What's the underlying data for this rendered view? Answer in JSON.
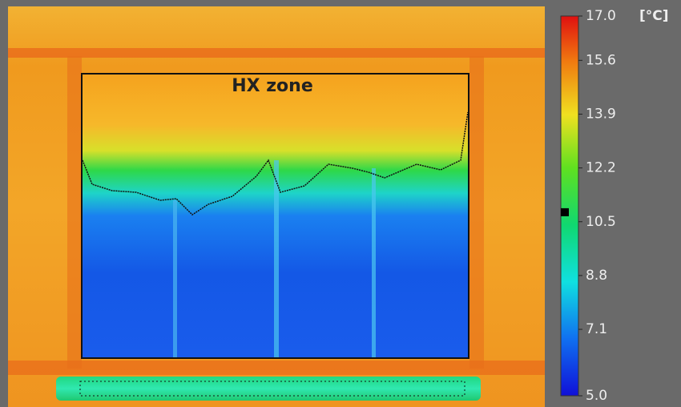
{
  "image": {
    "annotation": "HX zone"
  },
  "colorbar": {
    "unit": "[°C]",
    "lim": [
      5,
      17
    ],
    "ticks": [
      {
        "value": 17,
        "label": "17.0"
      },
      15.6,
      13.9,
      12.2,
      10.5,
      8.8,
      7.1,
      {
        "value": 5,
        "label": "5.0"
      }
    ],
    "marker": 10.8
  }
}
